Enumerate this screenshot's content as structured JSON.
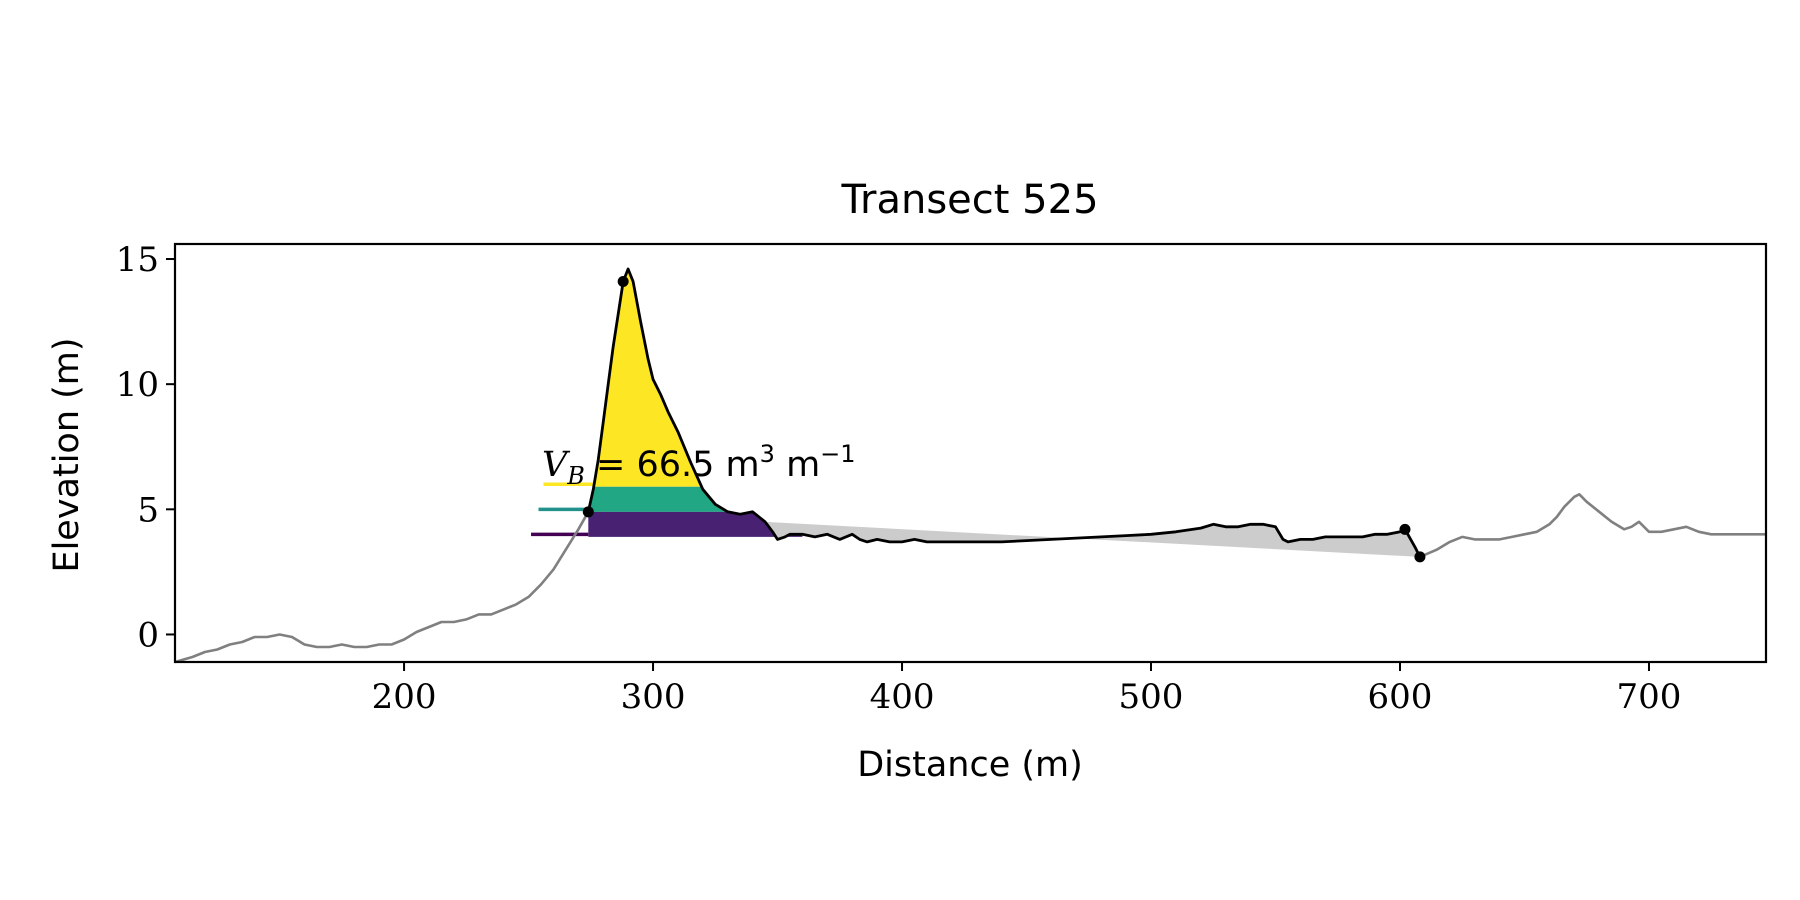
{
  "chart_data": {
    "type": "area",
    "title": "Transect 525",
    "xlabel": "Distance (m)",
    "ylabel": "Elevation (m)",
    "xlim": [
      108,
      747
    ],
    "ylim": [
      -1.1,
      15.6
    ],
    "xticks": [
      200,
      300,
      400,
      500,
      600,
      700
    ],
    "yticks": [
      0,
      5,
      10,
      15
    ],
    "grid": false,
    "annotation": {
      "prefix": "V",
      "subscript": "B",
      "text": " = 66.5 m",
      "sup1": "3",
      "text2": " m",
      "sup2": "−1"
    },
    "series": [
      {
        "style": "gray-outer-profile",
        "color": "#808080",
        "x": [
          108,
          115,
          120,
          125,
          130,
          135,
          140,
          145,
          150,
          155,
          160,
          165,
          170,
          175,
          180,
          185,
          190,
          195,
          200,
          205,
          210,
          215,
          220,
          225,
          230,
          235,
          240,
          245,
          250,
          255,
          260,
          265,
          270,
          274
        ],
        "y": [
          -1.1,
          -0.9,
          -0.7,
          -0.6,
          -0.4,
          -0.3,
          -0.1,
          -0.1,
          0.0,
          -0.1,
          -0.4,
          -0.5,
          -0.5,
          -0.4,
          -0.5,
          -0.5,
          -0.4,
          -0.4,
          -0.2,
          0.1,
          0.3,
          0.5,
          0.5,
          0.6,
          0.8,
          0.8,
          1.0,
          1.2,
          1.5,
          2.0,
          2.6,
          3.4,
          4.2,
          4.9
        ]
      },
      {
        "style": "gray-outer-profile-right",
        "color": "#808080",
        "x": [
          608,
          615,
          620,
          625,
          630,
          635,
          640,
          645,
          650,
          655,
          660,
          663,
          666,
          670,
          672,
          675,
          680,
          685,
          690,
          693,
          696,
          700,
          705,
          710,
          715,
          720,
          725,
          730,
          735,
          740,
          747
        ],
        "y": [
          3.1,
          3.4,
          3.7,
          3.9,
          3.8,
          3.8,
          3.8,
          3.9,
          4.0,
          4.1,
          4.4,
          4.7,
          5.1,
          5.5,
          5.6,
          5.3,
          4.9,
          4.5,
          4.2,
          4.3,
          4.5,
          4.1,
          4.1,
          4.2,
          4.3,
          4.1,
          4.0,
          4.0,
          4.0,
          4.0,
          4.0
        ]
      },
      {
        "style": "black-dune-profile",
        "color": "#000000",
        "x": [
          274,
          276,
          278,
          280,
          282,
          284,
          286,
          288,
          290,
          292,
          295,
          298,
          300,
          303,
          306,
          310,
          315,
          320,
          325,
          330,
          335,
          340,
          345,
          348,
          350,
          353,
          355,
          360,
          365,
          370,
          375,
          380,
          383,
          386,
          390,
          395,
          400,
          405,
          410,
          420,
          430,
          440,
          450,
          460,
          470,
          480,
          490,
          500,
          510,
          520,
          525,
          530,
          535,
          540,
          545,
          550,
          553,
          555,
          560,
          565,
          570,
          575,
          580,
          585,
          590,
          595,
          600,
          602,
          606,
          608
        ],
        "y": [
          4.9,
          5.8,
          7.0,
          8.5,
          10.0,
          11.5,
          12.8,
          14.1,
          14.6,
          14.1,
          12.5,
          11.0,
          10.2,
          9.6,
          8.9,
          8.1,
          6.9,
          5.8,
          5.2,
          4.9,
          4.8,
          4.9,
          4.5,
          4.1,
          3.8,
          3.9,
          4.0,
          4.0,
          3.9,
          4.0,
          3.8,
          4.0,
          3.8,
          3.7,
          3.8,
          3.7,
          3.7,
          3.8,
          3.7,
          3.7,
          3.7,
          3.7,
          3.75,
          3.8,
          3.85,
          3.9,
          3.95,
          4.0,
          4.1,
          4.25,
          4.4,
          4.3,
          4.3,
          4.4,
          4.4,
          4.3,
          3.8,
          3.7,
          3.8,
          3.8,
          3.9,
          3.9,
          3.9,
          3.9,
          4.0,
          4.0,
          4.1,
          4.2,
          3.5,
          3.1
        ]
      }
    ],
    "points": [
      {
        "x": 288,
        "y": 14.1
      },
      {
        "x": 274,
        "y": 4.9
      },
      {
        "x": 602,
        "y": 4.2
      },
      {
        "x": 608,
        "y": 3.1
      }
    ],
    "bands": [
      {
        "color": "#fde725",
        "y_lower": 5.9
      },
      {
        "color": "#21a784",
        "y_lower": 4.9
      },
      {
        "color": "#482173",
        "y_lower": 3.9
      }
    ],
    "band_legend_lines": [
      {
        "color": "#fde725",
        "x_start": 256,
        "y": 6.0
      },
      {
        "color": "#21918c",
        "x_start": 254,
        "y": 5.0
      },
      {
        "color": "#440154",
        "x_start": 251,
        "y": 4.0
      }
    ],
    "gray_fill": {
      "color": "#cccccc",
      "baseline": {
        "x": [
          345,
          608
        ],
        "y": [
          4.5,
          3.1
        ]
      }
    }
  }
}
